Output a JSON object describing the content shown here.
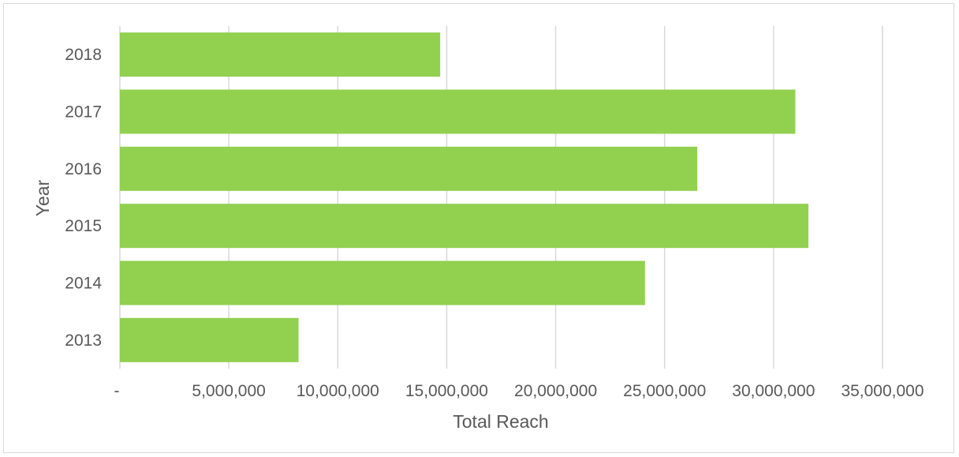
{
  "chart_data": {
    "type": "bar",
    "orientation": "horizontal",
    "categories": [
      "2018",
      "2017",
      "2016",
      "2015",
      "2014",
      "2013"
    ],
    "values": [
      14700000,
      31000000,
      26500000,
      31600000,
      24100000,
      8200000
    ],
    "xlabel": "Total Reach",
    "ylabel": "Year",
    "xlim": [
      0,
      35000000
    ],
    "x_ticks": [
      0,
      5000000,
      10000000,
      15000000,
      20000000,
      25000000,
      30000000,
      35000000
    ],
    "x_tick_labels": [
      "-",
      "5,000,000",
      "10,000,000",
      "15,000,000",
      "20,000,000",
      "25,000,000",
      "30,000,000",
      "35,000,000"
    ],
    "grid": "vertical",
    "bar_color": "#92d050",
    "grid_color": "#d9d9d9",
    "legend": "none"
  }
}
